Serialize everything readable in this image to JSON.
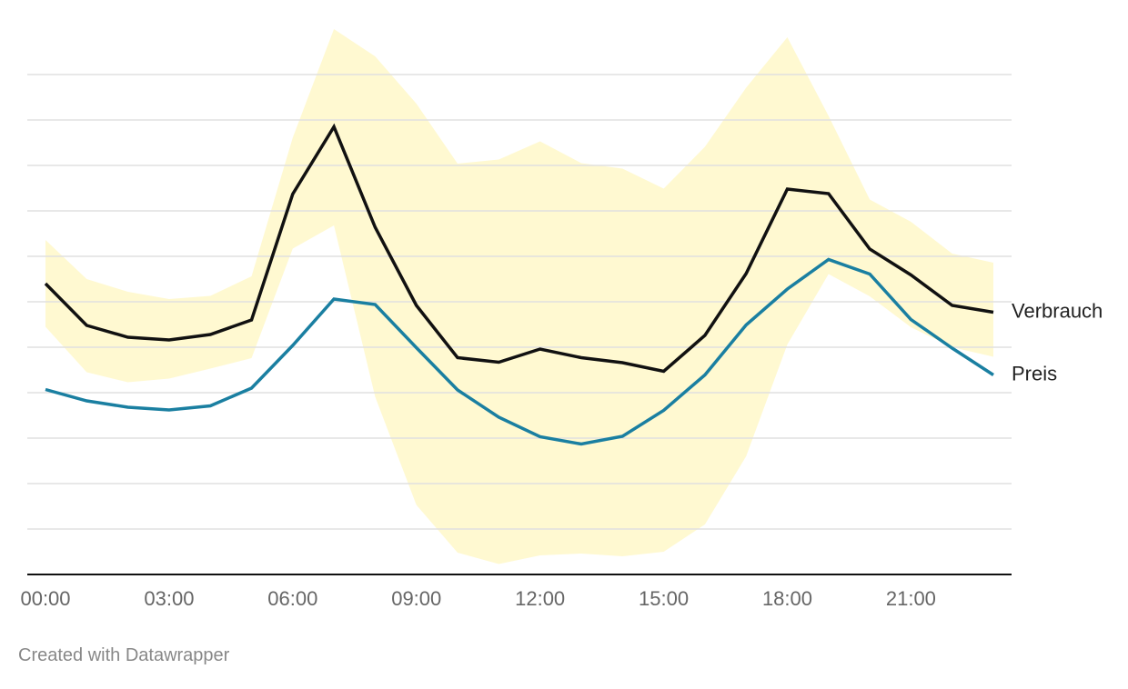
{
  "chart_data": {
    "type": "line",
    "title": "",
    "xlabel": "",
    "ylabel": "",
    "x": [
      "00:00",
      "01:00",
      "02:00",
      "03:00",
      "04:00",
      "05:00",
      "06:00",
      "07:00",
      "08:00",
      "09:00",
      "10:00",
      "11:00",
      "12:00",
      "13:00",
      "14:00",
      "15:00",
      "16:00",
      "17:00",
      "18:00",
      "19:00",
      "20:00",
      "21:00",
      "22:00",
      "23:00"
    ],
    "x_tick_labels": [
      "00:00",
      "03:00",
      "06:00",
      "09:00",
      "12:00",
      "15:00",
      "18:00",
      "21:00"
    ],
    "ylim": [
      0,
      11
    ],
    "y_grid_count": 11,
    "grid": true,
    "series": [
      {
        "name": "Verbrauch",
        "color": "#111111",
        "values": [
          6.4,
          5.48,
          5.22,
          5.16,
          5.28,
          5.6,
          8.37,
          9.85,
          7.64,
          5.92,
          4.77,
          4.67,
          4.96,
          4.77,
          4.66,
          4.47,
          5.26,
          6.62,
          8.48,
          8.38,
          7.16,
          6.59,
          5.92,
          5.77
        ]
      },
      {
        "name": "Preis",
        "color": "#1a7fa1",
        "values": [
          4.07,
          3.82,
          3.68,
          3.62,
          3.71,
          4.1,
          5.04,
          6.06,
          5.94,
          4.99,
          4.06,
          3.46,
          3.03,
          2.87,
          3.04,
          3.61,
          4.39,
          5.49,
          6.28,
          6.93,
          6.61,
          5.61,
          4.98,
          4.39
        ]
      }
    ],
    "band": {
      "color": "#fff9d1",
      "upper": [
        7.36,
        6.5,
        6.22,
        6.06,
        6.13,
        6.56,
        9.61,
        12.0,
        11.4,
        10.36,
        9.04,
        9.13,
        9.53,
        9.05,
        8.93,
        8.49,
        9.41,
        10.71,
        11.82,
        10.09,
        8.25,
        7.76,
        7.06,
        6.86
      ],
      "lower": [
        5.45,
        4.45,
        4.23,
        4.31,
        4.53,
        4.76,
        7.17,
        7.68,
        3.91,
        1.53,
        0.48,
        0.23,
        0.42,
        0.46,
        0.4,
        0.5,
        1.1,
        2.6,
        5.06,
        6.61,
        6.12,
        5.44,
        5.0,
        4.79
      ]
    }
  },
  "labels": {
    "verbrauch": "Verbrauch",
    "preis": "Preis"
  },
  "footer": "Created with Datawrapper"
}
